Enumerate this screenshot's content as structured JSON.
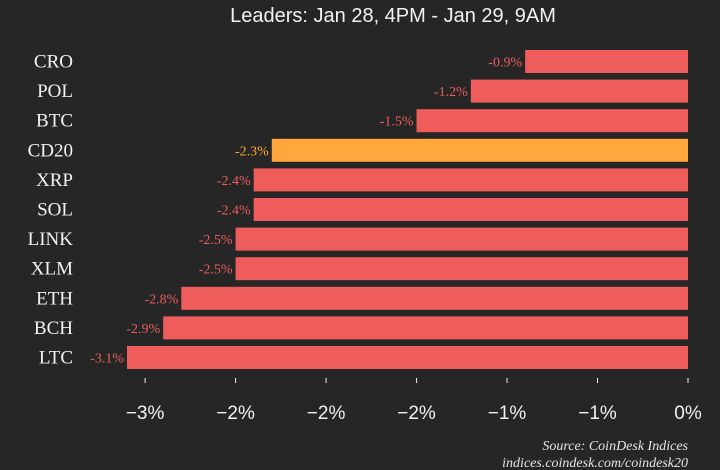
{
  "chart_data": {
    "type": "bar",
    "orientation": "horizontal",
    "subtitle": "Leaders: Jan 28, 4PM - Jan 29, 9AM",
    "categories": [
      "CRO",
      "POL",
      "BTC",
      "CD20",
      "XRP",
      "SOL",
      "LINK",
      "XLM",
      "ETH",
      "BCH",
      "LTC"
    ],
    "values": [
      -0.9,
      -1.2,
      -1.5,
      -2.3,
      -2.4,
      -2.4,
      -2.5,
      -2.5,
      -2.8,
      -2.9,
      -3.1
    ],
    "value_labels": [
      "-0.9%",
      "-1.2%",
      "-1.5%",
      "-2.3%",
      "-2.4%",
      "-2.4%",
      "-2.5%",
      "-2.5%",
      "-2.8%",
      "-2.9%",
      "-3.1%"
    ],
    "highlight_category": "CD20",
    "xlim": [
      -3.1,
      0
    ],
    "x_ticks": [
      -3,
      -2.5,
      -2,
      -1.5,
      -1,
      -0.5,
      0
    ],
    "x_tick_labels": [
      "−3%",
      "−2%",
      "−2%",
      "−2%",
      "−1%",
      "−1%",
      "0%"
    ],
    "grid": false,
    "colors": {
      "bar": "#ef5c5c",
      "highlight_bar": "#ffa63c",
      "label": "#ef5c5c",
      "highlight_label": "#ffa63c",
      "background": "#262626",
      "text": "#f2f2f2"
    },
    "source": [
      "Source: CoinDesk Indices",
      "indices.coindesk.com/coindesk20"
    ]
  }
}
